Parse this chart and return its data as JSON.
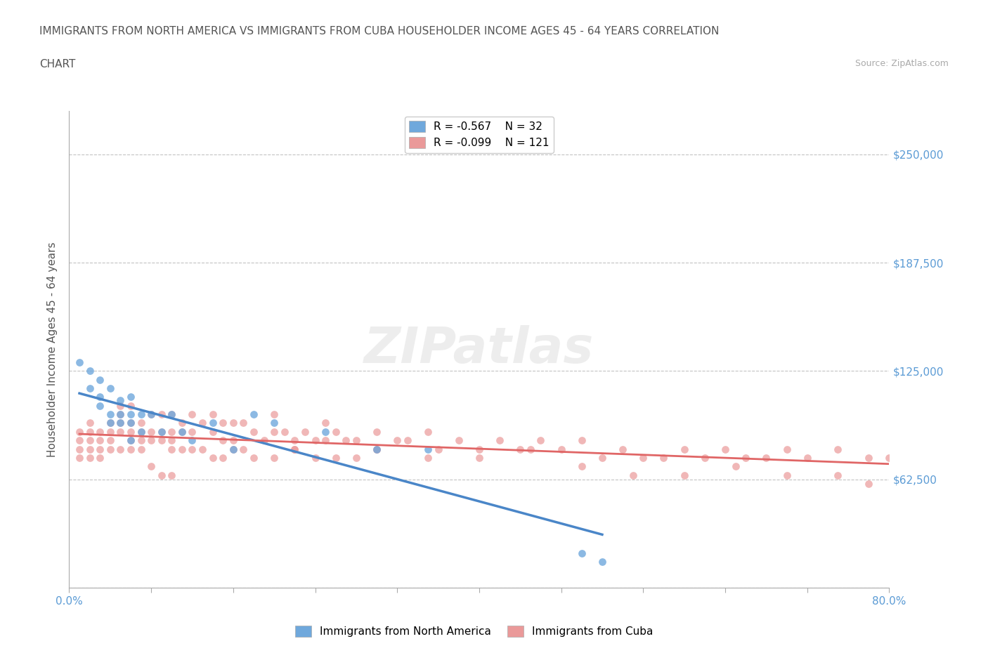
{
  "title_line1": "IMMIGRANTS FROM NORTH AMERICA VS IMMIGRANTS FROM CUBA HOUSEHOLDER INCOME AGES 45 - 64 YEARS CORRELATION",
  "title_line2": "CHART",
  "source_text": "Source: ZipAtlas.com",
  "xlabel": "",
  "ylabel": "Householder Income Ages 45 - 64 years",
  "xlim": [
    0.0,
    0.8
  ],
  "ylim": [
    0,
    275000
  ],
  "yticks": [
    0,
    62500,
    125000,
    187500,
    250000
  ],
  "ytick_labels": [
    "",
    "$62,500",
    "$125,000",
    "$187,500",
    "$250,000"
  ],
  "xticks": [
    0.0,
    0.08,
    0.16,
    0.24,
    0.32,
    0.4,
    0.48,
    0.56,
    0.64,
    0.72,
    0.8
  ],
  "xtick_labels": [
    "0.0%",
    "",
    "",
    "",
    "",
    "",
    "",
    "",
    "",
    "",
    "80.0%"
  ],
  "color_north_america": "#6fa8dc",
  "color_cuba": "#ea9999",
  "line_color_north_america": "#4a86c8",
  "line_color_cuba": "#e06666",
  "legend_label_na": "Immigrants from North America",
  "legend_label_cuba": "Immigrants from Cuba",
  "R_na": -0.567,
  "N_na": 32,
  "R_cuba": -0.099,
  "N_cuba": 121,
  "watermark": "ZIPatlas",
  "north_america_x": [
    0.01,
    0.02,
    0.02,
    0.03,
    0.03,
    0.03,
    0.04,
    0.04,
    0.04,
    0.05,
    0.05,
    0.05,
    0.06,
    0.06,
    0.06,
    0.06,
    0.07,
    0.07,
    0.08,
    0.09,
    0.1,
    0.11,
    0.12,
    0.14,
    0.16,
    0.18,
    0.2,
    0.25,
    0.3,
    0.35,
    0.5,
    0.52
  ],
  "north_america_y": [
    130000,
    125000,
    115000,
    120000,
    110000,
    105000,
    115000,
    100000,
    95000,
    108000,
    100000,
    95000,
    110000,
    100000,
    95000,
    85000,
    100000,
    90000,
    100000,
    90000,
    100000,
    90000,
    85000,
    95000,
    80000,
    100000,
    95000,
    90000,
    80000,
    80000,
    20000,
    15000
  ],
  "cuba_x": [
    0.01,
    0.01,
    0.01,
    0.01,
    0.02,
    0.02,
    0.02,
    0.02,
    0.02,
    0.03,
    0.03,
    0.03,
    0.03,
    0.04,
    0.04,
    0.04,
    0.04,
    0.05,
    0.05,
    0.05,
    0.05,
    0.05,
    0.06,
    0.06,
    0.06,
    0.06,
    0.06,
    0.07,
    0.07,
    0.07,
    0.07,
    0.08,
    0.08,
    0.08,
    0.09,
    0.09,
    0.09,
    0.1,
    0.1,
    0.1,
    0.11,
    0.11,
    0.11,
    0.12,
    0.12,
    0.13,
    0.14,
    0.14,
    0.15,
    0.15,
    0.16,
    0.16,
    0.17,
    0.18,
    0.19,
    0.2,
    0.2,
    0.21,
    0.22,
    0.22,
    0.23,
    0.24,
    0.25,
    0.25,
    0.26,
    0.27,
    0.28,
    0.3,
    0.3,
    0.32,
    0.33,
    0.35,
    0.36,
    0.38,
    0.4,
    0.42,
    0.44,
    0.46,
    0.48,
    0.5,
    0.52,
    0.54,
    0.56,
    0.58,
    0.6,
    0.62,
    0.64,
    0.66,
    0.68,
    0.7,
    0.72,
    0.75,
    0.78,
    0.8,
    0.1,
    0.12,
    0.13,
    0.14,
    0.15,
    0.16,
    0.17,
    0.18,
    0.2,
    0.22,
    0.24,
    0.26,
    0.28,
    0.3,
    0.35,
    0.4,
    0.45,
    0.5,
    0.55,
    0.6,
    0.65,
    0.7,
    0.75,
    0.78,
    0.08,
    0.09,
    0.1
  ],
  "cuba_y": [
    90000,
    85000,
    80000,
    75000,
    95000,
    90000,
    85000,
    80000,
    75000,
    90000,
    85000,
    80000,
    75000,
    95000,
    90000,
    85000,
    80000,
    105000,
    100000,
    95000,
    90000,
    80000,
    105000,
    95000,
    90000,
    85000,
    80000,
    95000,
    90000,
    85000,
    80000,
    100000,
    90000,
    85000,
    100000,
    90000,
    85000,
    100000,
    90000,
    85000,
    95000,
    90000,
    80000,
    100000,
    90000,
    95000,
    100000,
    90000,
    95000,
    85000,
    95000,
    85000,
    95000,
    90000,
    85000,
    100000,
    90000,
    90000,
    85000,
    80000,
    90000,
    85000,
    95000,
    85000,
    90000,
    85000,
    85000,
    90000,
    80000,
    85000,
    85000,
    90000,
    80000,
    85000,
    80000,
    85000,
    80000,
    85000,
    80000,
    85000,
    75000,
    80000,
    75000,
    75000,
    80000,
    75000,
    80000,
    75000,
    75000,
    80000,
    75000,
    80000,
    75000,
    75000,
    80000,
    80000,
    80000,
    75000,
    75000,
    80000,
    80000,
    75000,
    75000,
    80000,
    75000,
    75000,
    75000,
    80000,
    75000,
    75000,
    80000,
    70000,
    65000,
    65000,
    70000,
    65000,
    65000,
    60000,
    70000,
    65000,
    65000
  ]
}
